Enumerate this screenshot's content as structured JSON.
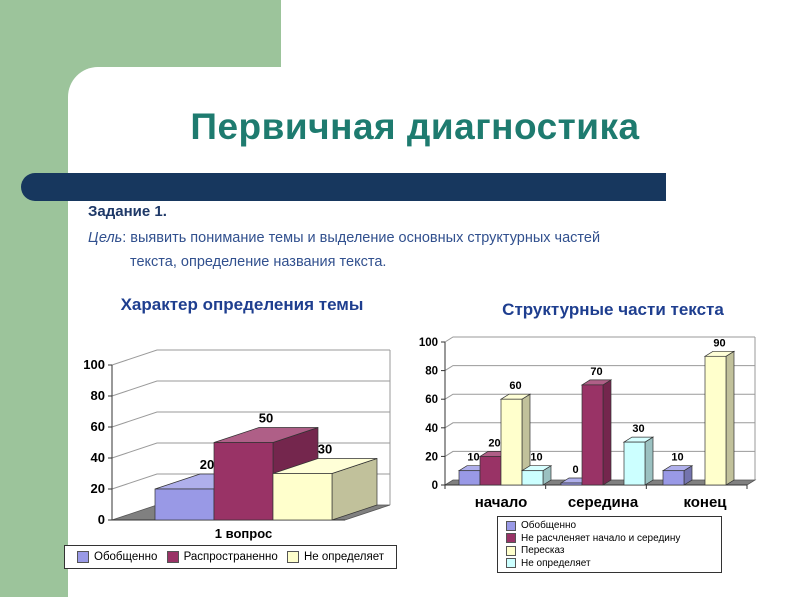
{
  "slide": {
    "title": "Первичная диагностика",
    "task_label": "Задание 1.",
    "goal_word": "Цель",
    "goal_rest": ": выявить понимание темы и выделение основных структурных частей",
    "goal_line2": "текста, определение названия текста."
  },
  "colors": {
    "green": "#9CC49B",
    "navy": "#17375E",
    "teal": "#1E7B6F",
    "task-text": "#1F3968",
    "body-text": "#31508E",
    "chart-title": "#1E3E8F",
    "floor-gray": "#808080"
  },
  "chart_data": [
    {
      "type": "bar",
      "style": "3d-column",
      "title": "Характер определения темы",
      "categories": [
        "1 вопрос"
      ],
      "series": [
        {
          "name": "Обобщенно",
          "color": "#9999E6",
          "values": [
            20
          ],
          "labels": [
            "20"
          ]
        },
        {
          "name": "Распространенно",
          "color": "#993366",
          "values": [
            50
          ],
          "labels": [
            "50"
          ]
        },
        {
          "name": "Не определяет",
          "color": "#FFFFCC",
          "values": [
            30
          ],
          "labels": [
            "30"
          ]
        }
      ],
      "ylim": [
        0,
        100
      ],
      "yticks": [
        0,
        20,
        40,
        60,
        80,
        100
      ],
      "grid": true,
      "legend_position": "bottom"
    },
    {
      "type": "bar",
      "style": "3d-column",
      "title": "Структурные части текста",
      "categories": [
        "начало",
        "середина",
        "конец"
      ],
      "series": [
        {
          "name": "Обобщенно",
          "color": "#9999E6",
          "values": [
            10,
            0,
            10
          ],
          "labels": [
            "10",
            "0",
            "10"
          ]
        },
        {
          "name": "Не расчленяет начало и середину",
          "color": "#993366",
          "values": [
            20,
            70,
            0
          ],
          "labels": [
            "20",
            "70",
            null
          ]
        },
        {
          "name": "Пересказ",
          "color": "#FFFFCC",
          "values": [
            60,
            0,
            90
          ],
          "labels": [
            "60",
            null,
            "90"
          ]
        },
        {
          "name": "Не определяет",
          "color": "#CCFFFF",
          "values": [
            10,
            30,
            0
          ],
          "labels": [
            "10",
            "30",
            null
          ]
        }
      ],
      "ylim": [
        0,
        100
      ],
      "yticks": [
        0,
        20,
        40,
        60,
        80,
        100
      ],
      "grid": true,
      "legend_position": "bottom"
    }
  ]
}
